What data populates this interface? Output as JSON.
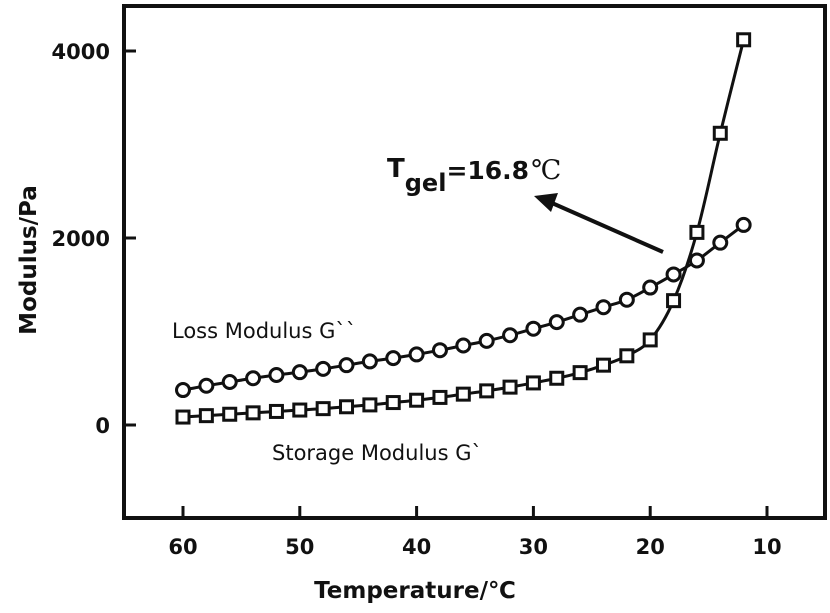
{
  "chart_data": {
    "type": "line",
    "title": "",
    "xlabel": "Temperature/℃",
    "ylabel": "Modulus/Pa",
    "x_reversed": true,
    "xlim": [
      65,
      5
    ],
    "ylim": [
      -1000,
      4200
    ],
    "x_ticks": [
      60,
      50,
      40,
      30,
      20,
      10
    ],
    "y_ticks": [
      0,
      2000,
      4000
    ],
    "grid": false,
    "legend": "none (inline text labels)",
    "x": [
      60,
      58,
      56,
      54,
      52,
      50,
      48,
      46,
      44,
      42,
      40,
      38,
      36,
      34,
      32,
      30,
      28,
      26,
      24,
      22,
      20,
      18,
      16,
      14,
      12
    ],
    "series": [
      {
        "name": "Loss Modulus G``",
        "marker": "circle",
        "values": [
          374,
          420,
          460,
          500,
          535,
          565,
          600,
          640,
          680,
          715,
          755,
          800,
          850,
          900,
          960,
          1030,
          1100,
          1180,
          1260,
          1340,
          1470,
          1610,
          1760,
          1950,
          2140
        ]
      },
      {
        "name": "Storage Modulus G`",
        "marker": "square",
        "values": [
          85,
          100,
          115,
          130,
          145,
          160,
          175,
          195,
          215,
          240,
          265,
          295,
          330,
          365,
          405,
          450,
          500,
          560,
          640,
          740,
          910,
          1330,
          2060,
          3120,
          4120
        ]
      }
    ],
    "annotations": [
      {
        "text": "Loss Modulus G``",
        "position": "above loss curve, left"
      },
      {
        "text": "Storage Modulus G`",
        "position": "below storage curve, center"
      },
      {
        "text": "Tgel=16.8℃",
        "position": "upper center with arrow pointing from crossover point"
      }
    ]
  },
  "labels": {
    "y_ticks": [
      "0",
      "2000",
      "4000"
    ],
    "x_ticks": [
      "60",
      "50",
      "40",
      "30",
      "20",
      "10"
    ],
    "xlabel": "Temperature/℃",
    "ylabel": "Modulus/Pa",
    "loss_label": "Loss Modulus G``",
    "storage_label": "Storage Modulus G`",
    "tgel_T": "T",
    "tgel_sub": "gel",
    "tgel_value": "=16.8",
    "tgel_unit": "℃"
  },
  "colors": {
    "ink": "#111111",
    "background": "#ffffff"
  }
}
